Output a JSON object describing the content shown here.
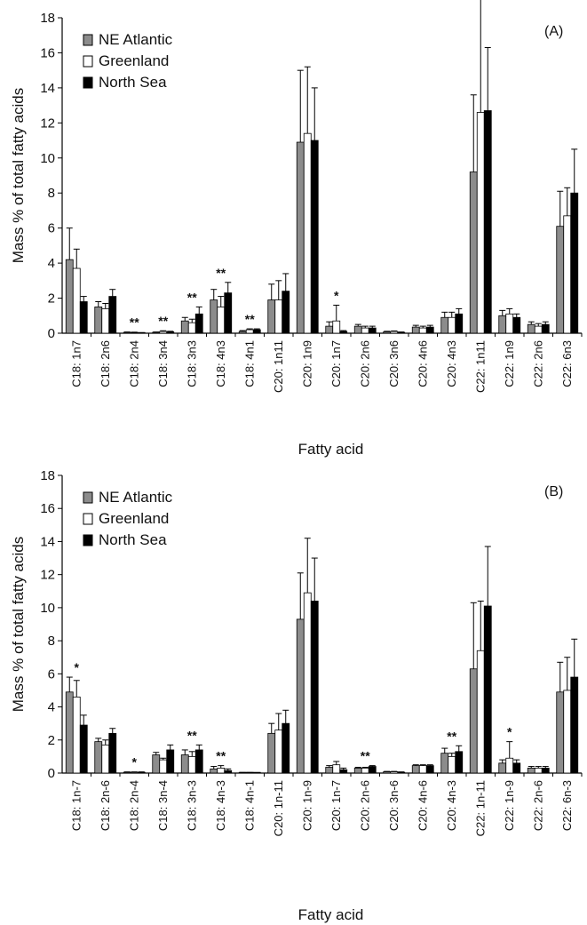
{
  "colors": {
    "NE Atlantic": "#8c8c8c",
    "Greenland": "#ffffff",
    "North Sea": "#000000"
  },
  "chart_data": [
    {
      "type": "bar",
      "panel_label": "(A)",
      "xlabel": "Fatty acid",
      "ylabel": "Mass % of total fatty acids",
      "ylim": [
        0,
        18
      ],
      "yticks": [
        0,
        2,
        4,
        6,
        8,
        10,
        12,
        14,
        16,
        18
      ],
      "legend_position": "top-left",
      "categories": [
        "C18: 1n7",
        "C18: 2n6",
        "C18: 2n4",
        "C18: 3n4",
        "C18: 3n3",
        "C18: 4n3",
        "C18: 4n1",
        "C20: 1n11",
        "C20: 1n9",
        "C20: 1n7",
        "C20: 2n6",
        "C20: 3n6",
        "C20: 4n6",
        "C20: 4n3",
        "C22: 1n11",
        "C22: 1n9",
        "C22: 2n6",
        "C22: 6n3"
      ],
      "series": [
        {
          "name": "NE Atlantic",
          "values": [
            4.2,
            1.5,
            0.05,
            0.05,
            0.7,
            1.9,
            0.1,
            1.9,
            10.9,
            0.4,
            0.4,
            0.08,
            0.35,
            0.9,
            9.2,
            1.0,
            0.5,
            6.1
          ],
          "errors": [
            1.8,
            0.3,
            0.02,
            0.02,
            0.2,
            0.6,
            0.05,
            0.9,
            4.1,
            0.25,
            0.1,
            0.03,
            0.1,
            0.3,
            4.4,
            0.3,
            0.15,
            2.0
          ]
        },
        {
          "name": "Greenland",
          "values": [
            3.7,
            1.4,
            0.04,
            0.1,
            0.6,
            1.5,
            0.2,
            1.9,
            11.4,
            0.7,
            0.3,
            0.1,
            0.3,
            0.9,
            12.6,
            1.1,
            0.4,
            6.7
          ],
          "errors": [
            1.1,
            0.3,
            0.02,
            0.04,
            0.2,
            0.6,
            0.05,
            1.1,
            3.8,
            0.9,
            0.1,
            0.03,
            0.1,
            0.3,
            7.0,
            0.3,
            0.15,
            1.6
          ]
        },
        {
          "name": "North Sea",
          "values": [
            1.8,
            2.1,
            0.02,
            0.08,
            1.1,
            2.3,
            0.2,
            2.4,
            11.0,
            0.1,
            0.3,
            0.05,
            0.35,
            1.1,
            12.7,
            0.9,
            0.5,
            8.0
          ],
          "errors": [
            0.3,
            0.4,
            0.01,
            0.03,
            0.4,
            0.6,
            0.05,
            1.0,
            3.0,
            0.05,
            0.1,
            0.02,
            0.1,
            0.3,
            3.6,
            0.2,
            0.15,
            2.5
          ]
        }
      ],
      "significance": [
        "",
        "",
        "**",
        "**",
        "**",
        "**",
        "**",
        "",
        "",
        "*",
        "",
        "",
        "",
        "",
        "",
        "",
        "",
        ""
      ]
    },
    {
      "type": "bar",
      "panel_label": "(B)",
      "xlabel": "Fatty acid",
      "ylabel": "Mass % of total fatty acids",
      "ylim": [
        0,
        18
      ],
      "yticks": [
        0,
        2,
        4,
        6,
        8,
        10,
        12,
        14,
        16,
        18
      ],
      "legend_position": "top-left",
      "categories": [
        "C18: 1n-7",
        "C18: 2n-6",
        "C18: 2n-4",
        "C18: 3n-4",
        "C18: 3n-3",
        "C18: 4n-3",
        "C18: 4n-1",
        "C20: 1n-11",
        "C20: 1n-9",
        "C20: 1n-7",
        "C20: 2n-6",
        "C20: 3n-6",
        "C20: 4n-6",
        "C20: 4n-3",
        "C22: 1n-11",
        "C22: 1n-9",
        "C22: 2n-6",
        "C22: 6n-3"
      ],
      "series": [
        {
          "name": "NE Atlantic",
          "values": [
            4.9,
            1.9,
            0.05,
            1.1,
            1.1,
            0.25,
            0.03,
            2.4,
            9.3,
            0.35,
            0.3,
            0.08,
            0.45,
            1.2,
            6.3,
            0.6,
            0.3,
            4.9
          ],
          "errors": [
            0.9,
            0.2,
            0.02,
            0.15,
            0.3,
            0.15,
            0.01,
            0.6,
            2.8,
            0.1,
            0.05,
            0.02,
            0.05,
            0.3,
            4.0,
            0.2,
            0.1,
            1.8
          ]
        },
        {
          "name": "Greenland",
          "values": [
            4.6,
            1.7,
            0.05,
            0.8,
            1.0,
            0.3,
            0.03,
            2.6,
            10.9,
            0.5,
            0.3,
            0.08,
            0.45,
            1.0,
            7.4,
            0.9,
            0.3,
            5.0
          ],
          "errors": [
            1.0,
            0.3,
            0.02,
            0.1,
            0.3,
            0.15,
            0.01,
            1.0,
            3.3,
            0.2,
            0.05,
            0.02,
            0.05,
            0.2,
            3.0,
            1.0,
            0.1,
            2.0
          ]
        },
        {
          "name": "North Sea",
          "values": [
            2.9,
            2.4,
            0.05,
            1.4,
            1.4,
            0.15,
            0.02,
            3.0,
            10.4,
            0.2,
            0.4,
            0.05,
            0.45,
            1.3,
            10.1,
            0.6,
            0.3,
            5.8
          ],
          "errors": [
            0.6,
            0.3,
            0.02,
            0.3,
            0.3,
            0.1,
            0.01,
            0.8,
            2.6,
            0.1,
            0.05,
            0.02,
            0.05,
            0.35,
            3.6,
            0.2,
            0.1,
            2.3
          ]
        }
      ],
      "significance": [
        "*",
        "",
        "*",
        "",
        "**",
        "**",
        "",
        "",
        "",
        "",
        "**",
        "",
        "",
        "**",
        "",
        "*",
        "",
        ""
      ]
    }
  ]
}
